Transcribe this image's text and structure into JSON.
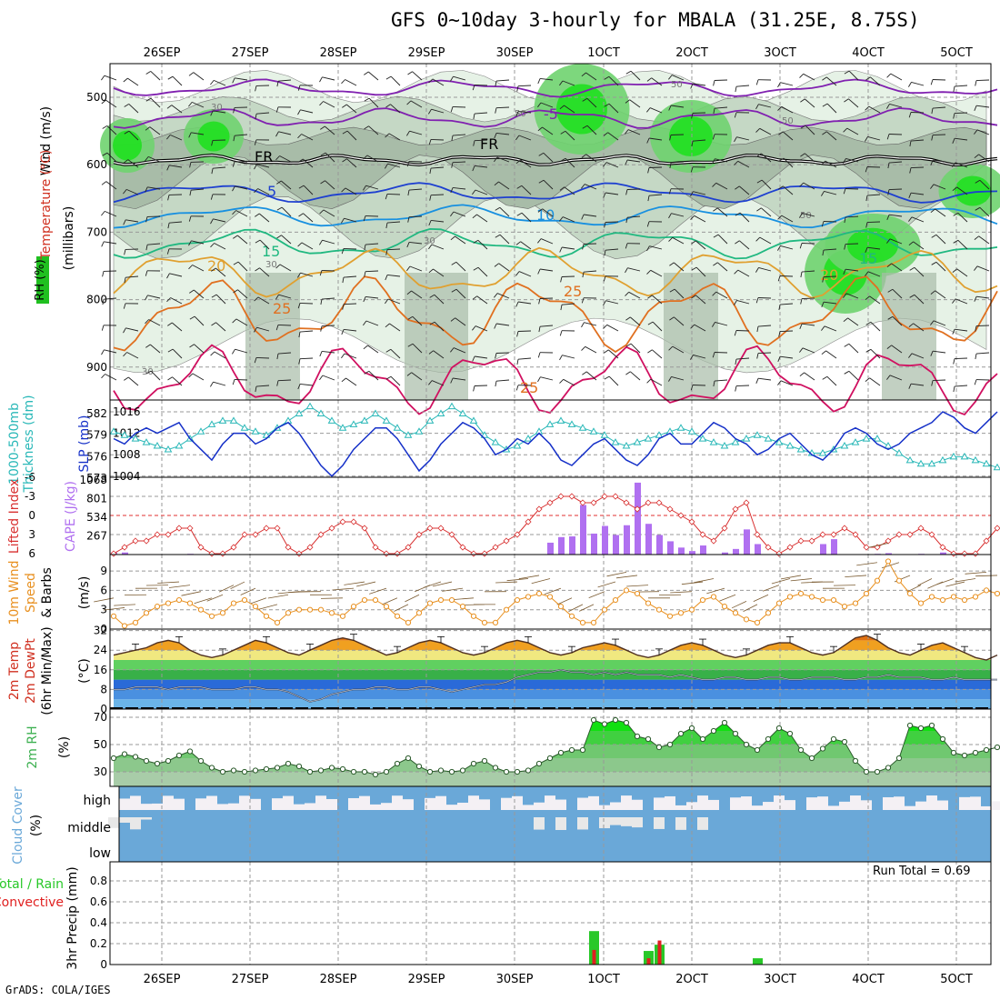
{
  "title": "GFS 0~10day 3-hourly for MBALA (31.25E, 8.75S)",
  "credit": "GrADS: COLA/IGES",
  "dates_top": [
    "26SEP",
    "27SEP",
    "28SEP",
    "29SEP",
    "30SEP",
    "1OCT",
    "2OCT",
    "3OCT",
    "4OCT",
    "5OCT"
  ],
  "dates_bottom": [
    "26SEP",
    "27SEP",
    "28SEP",
    "29SEP",
    "30SEP",
    "1OCT",
    "2OCT",
    "3OCT",
    "4OCT",
    "5OCT"
  ],
  "colors": {
    "slp": "#1530c8",
    "thickness": "#2ab8b8",
    "lifted": "#d83030",
    "cape": "#b070f0",
    "wind10": "#e89020",
    "barb10": "#7a5a30",
    "rh2m": "#3cb050",
    "cloud": "#6aa8d8",
    "precip_total": "#28c828",
    "precip_conv": "#e02020"
  },
  "panels": {
    "upper": {
      "ylabel_rh": "RH (%)",
      "ylabel_wind": "Wind (m/s)",
      "ylabel_temp": "Temperature (°C)",
      "ylabel_mb": "(millibars)",
      "levels": [
        "500",
        "600",
        "700",
        "800",
        "900"
      ],
      "contour_labels": [
        "-5",
        "FR",
        "FR",
        "5",
        "10",
        "15",
        "20",
        "25",
        "25",
        "30",
        "30",
        "30",
        "50",
        "50",
        "50",
        "70",
        "15",
        "20",
        "25"
      ]
    },
    "slp": {
      "left_label_1": "1000-500mb",
      "left_label_2": "Thickness (dm)",
      "right_label": "SLP (mb)",
      "left_ticks": [
        "582",
        "579",
        "576",
        "573"
      ],
      "right_ticks": [
        "1016",
        "1012",
        "1008",
        "1004"
      ]
    },
    "li": {
      "label_1": "Lifted Index",
      "label_2": "CAPE (J/kg)",
      "left_ticks": [
        "-6",
        "-3",
        "0",
        "3",
        "6"
      ],
      "right_ticks": [
        "1068",
        "801",
        "534",
        "267"
      ]
    },
    "wind": {
      "label_1": "10m Wind",
      "label_2": "Speed",
      "label_3": "& Barbs",
      "unit": "(m/s)",
      "ticks": [
        "9",
        "6",
        "3",
        "0"
      ]
    },
    "temp": {
      "label_1": "2m Temp",
      "label_2": "2m DewPt",
      "label_3": "(6hr Min/Max)",
      "unit": "(°C)",
      "ticks": [
        "32",
        "24",
        "16",
        "8",
        "0"
      ]
    },
    "rh": {
      "label": "2m RH",
      "unit": "(%)",
      "ticks": [
        "70",
        "50",
        "30"
      ]
    },
    "cloud": {
      "label": "Cloud Cover",
      "unit": "(%)",
      "rows": [
        "high",
        "middle",
        "low"
      ]
    },
    "precip": {
      "label_1": "Total / Rain",
      "label_2": "Convective",
      "unit": "3hr Precip (mm)",
      "ticks": [
        "0.8",
        "0.6",
        "0.4",
        "0.2",
        "0"
      ],
      "run_total": "Run Total = 0.69"
    }
  },
  "chart_data": [
    {
      "type": "line",
      "title": "1000-500mb Thickness (dm) / SLP (mb)",
      "x": "3-hourly steps 0..81",
      "series": [
        {
          "name": "SLP (mb)",
          "values": [
            1011,
            1010,
            1012,
            1013,
            1012,
            1013,
            1014,
            1011,
            1009,
            1007,
            1010,
            1012,
            1012,
            1010,
            1011,
            1013,
            1014,
            1012,
            1009,
            1006,
            1004,
            1006,
            1009,
            1011,
            1013,
            1013,
            1011,
            1008,
            1005,
            1007,
            1010,
            1012,
            1014,
            1013,
            1011,
            1008,
            1009,
            1011,
            1010,
            1012,
            1010,
            1007,
            1006,
            1008,
            1010,
            1011,
            1009,
            1007,
            1006,
            1008,
            1011,
            1012,
            1010,
            1010,
            1012,
            1014,
            1013,
            1011,
            1010,
            1008,
            1009,
            1011,
            1012,
            1010,
            1008,
            1007,
            1009,
            1012,
            1013,
            1012,
            1010,
            1009,
            1010,
            1012,
            1013,
            1014,
            1016,
            1015,
            1013,
            1012,
            1014,
            1016
          ]
        },
        {
          "name": "Thickness (dm)",
          "values": [
            579.5,
            579,
            578.5,
            578,
            577.5,
            577,
            577.5,
            578.5,
            579.5,
            580.5,
            581,
            581,
            580,
            579.5,
            579,
            580,
            581,
            582,
            583,
            582,
            581,
            580,
            580.5,
            581,
            582,
            581,
            580,
            579,
            579.5,
            581,
            582,
            583,
            582,
            581,
            579,
            578,
            577,
            577.5,
            578.5,
            579.5,
            580.5,
            581,
            580.5,
            580,
            579.5,
            579,
            578,
            577.5,
            578,
            578.5,
            579,
            579.5,
            580,
            579.5,
            578.5,
            578,
            577.5,
            578,
            578.5,
            579,
            578.5,
            578,
            577.5,
            577,
            576.5,
            576.5,
            577,
            577.5,
            578,
            578.5,
            578.5,
            577.5,
            576.5,
            575.5,
            575,
            575,
            575.5,
            576,
            576,
            575.5,
            575,
            574.5
          ]
        }
      ]
    },
    {
      "type": "bar",
      "title": "Lifted Index / CAPE (J/kg)",
      "series": [
        {
          "name": "Lifted Index",
          "values": [
            6,
            5,
            4,
            4,
            3,
            3,
            2,
            2,
            5,
            6,
            6,
            5,
            3,
            3,
            2,
            2,
            5,
            6,
            5,
            3,
            2,
            1,
            1,
            2,
            5,
            6,
            6,
            5,
            3,
            2,
            2,
            3,
            5,
            6,
            6,
            5,
            4,
            3,
            1,
            -1,
            -2,
            -3,
            -3,
            -2,
            -2,
            -3,
            -3,
            -2,
            -1,
            -2,
            -2,
            -1,
            0,
            1,
            3,
            4,
            2,
            -1,
            -2,
            3,
            5,
            6,
            5,
            4,
            4,
            3,
            3,
            2,
            3,
            5,
            5,
            4,
            3,
            3,
            2,
            3,
            5,
            6,
            6,
            6,
            4,
            2
          ]
        },
        {
          "name": "CAPE (J/kg)",
          "values": [
            30,
            30,
            0,
            0,
            0,
            0,
            0,
            10,
            0,
            0,
            0,
            0,
            0,
            0,
            0,
            0,
            0,
            0,
            0,
            0,
            0,
            0,
            0,
            0,
            0,
            0,
            0,
            0,
            0,
            0,
            0,
            0,
            0,
            0,
            0,
            0,
            0,
            0,
            0,
            0,
            170,
            250,
            260,
            710,
            300,
            410,
            280,
            420,
            1030,
            440,
            280,
            190,
            100,
            50,
            130,
            0,
            30,
            80,
            360,
            150,
            0,
            0,
            0,
            0,
            0,
            150,
            220,
            0,
            0,
            0,
            10,
            20,
            0,
            0,
            10,
            0,
            30,
            20,
            0,
            0,
            0,
            0
          ]
        }
      ]
    },
    {
      "type": "line",
      "title": "10m Wind Speed (m/s)",
      "values": [
        2,
        0.5,
        1,
        2.5,
        3.5,
        4,
        4.5,
        4,
        3,
        2,
        2.5,
        4,
        4.5,
        3.5,
        2,
        1,
        2.5,
        3,
        3,
        3,
        2.5,
        2,
        3.5,
        4.5,
        4.5,
        3.5,
        2,
        1,
        2.5,
        4,
        4.5,
        4.5,
        3.5,
        2,
        1,
        1,
        3,
        4.5,
        5,
        5.5,
        5,
        3.5,
        2,
        1,
        1,
        3,
        4.5,
        6,
        5.5,
        4,
        3,
        2,
        2.5,
        3,
        4.5,
        5,
        3.5,
        2.5,
        1.5,
        1,
        2.5,
        4,
        5,
        5.5,
        5,
        4.5,
        4.5,
        3.5,
        4,
        5.5,
        7.5,
        10.5,
        7.5,
        5.5,
        4,
        5,
        4.5,
        5,
        4.5,
        5,
        6,
        5.5
      ]
    },
    {
      "type": "area",
      "title": "2m Temp / 2m DewPt (°C)",
      "series": [
        {
          "name": "2m Temp",
          "values": [
            22,
            23,
            24,
            25,
            27,
            28,
            27,
            24,
            22,
            21,
            22,
            24,
            26,
            28,
            27,
            25,
            23,
            22,
            24,
            26,
            28,
            29,
            28,
            26,
            24,
            22,
            23,
            25,
            27,
            28,
            27,
            25,
            23,
            22,
            23,
            25,
            27,
            28,
            27,
            25,
            23,
            22,
            23,
            25,
            26,
            27,
            26,
            24,
            22,
            21,
            22,
            24,
            26,
            27,
            26,
            24,
            22,
            21,
            22,
            24,
            26,
            27,
            27,
            25,
            23,
            22,
            23,
            26,
            29,
            30,
            28,
            25,
            23,
            22,
            24,
            26,
            27,
            25,
            23,
            21,
            20,
            22
          ]
        },
        {
          "name": "2m DewPt",
          "values": [
            8,
            8,
            9,
            9,
            9,
            8,
            9,
            9,
            9,
            8,
            8,
            8,
            9,
            9,
            8,
            8,
            7,
            5,
            3,
            4,
            6,
            7,
            8,
            8,
            9,
            9,
            8,
            8,
            9,
            9,
            8,
            7,
            8,
            9,
            10,
            10,
            11,
            13,
            14,
            15,
            15,
            16,
            15,
            15,
            14,
            15,
            14,
            15,
            14,
            14,
            14,
            13,
            14,
            13,
            12,
            12,
            13,
            13,
            12,
            12,
            13,
            13,
            12,
            12,
            13,
            13,
            13,
            12,
            12,
            13,
            13,
            14,
            13,
            13,
            13,
            12,
            12,
            13,
            12,
            12,
            12,
            12
          ]
        }
      ]
    },
    {
      "type": "area",
      "title": "2m RH (%)",
      "values": [
        40,
        43,
        41,
        38,
        36,
        38,
        42,
        45,
        38,
        33,
        30,
        31,
        30,
        31,
        32,
        33,
        36,
        34,
        30,
        31,
        33,
        32,
        30,
        30,
        28,
        30,
        36,
        40,
        34,
        30,
        31,
        30,
        31,
        36,
        38,
        33,
        30,
        30,
        31,
        36,
        40,
        44,
        46,
        46,
        68,
        65,
        68,
        66,
        56,
        54,
        48,
        50,
        58,
        62,
        54,
        60,
        66,
        58,
        50,
        46,
        54,
        62,
        58,
        46,
        40,
        47,
        54,
        52,
        38,
        30,
        30,
        33,
        40,
        64,
        62,
        64,
        54,
        44,
        42,
        44,
        46,
        48
      ]
    },
    {
      "type": "bar",
      "title": "3hr Precip (mm)",
      "series": [
        {
          "name": "Total",
          "values": [
            0,
            0,
            0,
            0,
            0,
            0,
            0,
            0,
            0,
            0,
            0,
            0,
            0,
            0,
            0,
            0,
            0,
            0,
            0,
            0,
            0,
            0,
            0,
            0,
            0,
            0,
            0,
            0,
            0,
            0,
            0,
            0,
            0,
            0,
            0,
            0,
            0,
            0,
            0,
            0,
            0,
            0,
            0,
            0,
            0.32,
            0,
            0,
            0,
            0,
            0.13,
            0.19,
            0,
            0,
            0,
            0,
            0,
            0,
            0,
            0,
            0.06,
            0,
            0,
            0,
            0,
            0,
            0,
            0,
            0,
            0,
            0,
            0,
            0,
            0,
            0,
            0,
            0,
            0,
            0,
            0,
            0,
            0,
            0
          ]
        },
        {
          "name": "Convective",
          "values": [
            0,
            0,
            0,
            0,
            0,
            0,
            0,
            0,
            0,
            0,
            0,
            0,
            0,
            0,
            0,
            0,
            0,
            0,
            0,
            0,
            0,
            0,
            0,
            0,
            0,
            0,
            0,
            0,
            0,
            0,
            0,
            0,
            0,
            0,
            0,
            0,
            0,
            0,
            0,
            0,
            0,
            0,
            0,
            0,
            0.14,
            0,
            0,
            0,
            0,
            0.06,
            0.23,
            0,
            0,
            0,
            0,
            0,
            0,
            0,
            0,
            0,
            0,
            0,
            0,
            0,
            0,
            0,
            0,
            0,
            0,
            0,
            0,
            0,
            0,
            0,
            0,
            0,
            0,
            0,
            0,
            0,
            0,
            0
          ]
        }
      ]
    }
  ]
}
